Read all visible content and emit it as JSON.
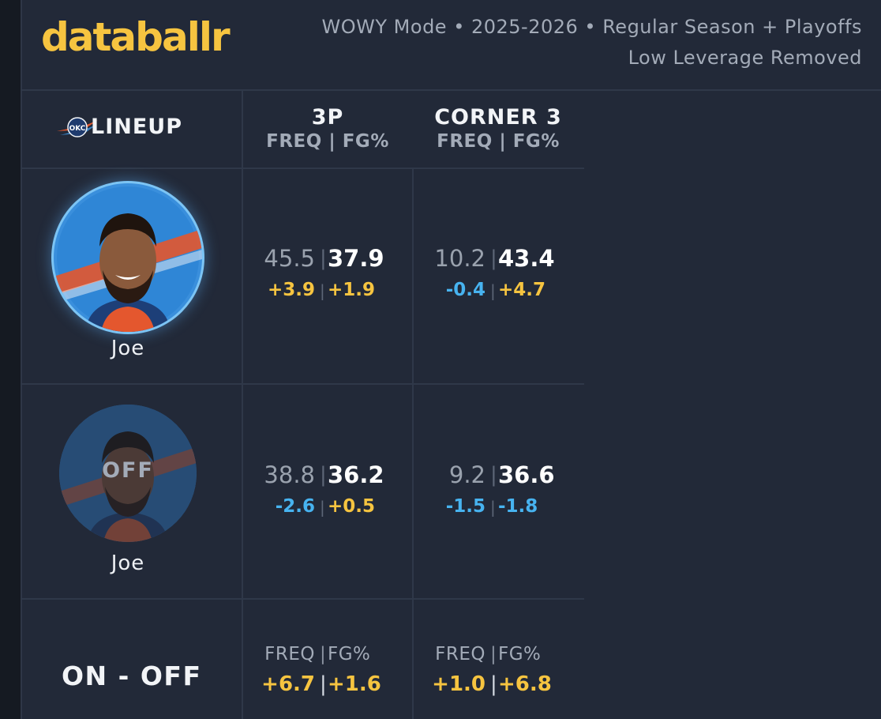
{
  "header": {
    "logo": "databallr",
    "subtitle_line1": "WOWY Mode • 2025-2026 • Regular Season + Playoffs",
    "subtitle_line2": "Low Leverage Removed"
  },
  "table": {
    "lineup_label": "LINEUP",
    "team_logo_text": "OKC",
    "columns": [
      {
        "title": "3P",
        "subtitle": "FREQ | FG%"
      },
      {
        "title": "CORNER 3",
        "subtitle": "FREQ | FG%"
      }
    ],
    "rows": [
      {
        "player_name": "Joe",
        "status": "on",
        "cells": [
          {
            "freq": "45.5",
            "fg": "37.9",
            "freq_delta": "+3.9",
            "fg_delta": "+1.9"
          },
          {
            "freq": "10.2",
            "fg": "43.4",
            "freq_delta": "-0.4",
            "fg_delta": "+4.7"
          }
        ]
      },
      {
        "player_name": "Joe",
        "status": "off",
        "overlay": "OFF",
        "cells": [
          {
            "freq": "38.8",
            "fg": "36.2",
            "freq_delta": "-2.6",
            "fg_delta": "+0.5"
          },
          {
            "freq": "9.2",
            "fg": "36.6",
            "freq_delta": "-1.5",
            "fg_delta": "-1.8"
          }
        ]
      }
    ],
    "on_off": {
      "label": "ON - OFF",
      "cells": [
        {
          "freq_label": "FREQ",
          "fg_label": "FG%",
          "freq": "+6.7",
          "fg": "+1.6"
        },
        {
          "freq_label": "FREQ",
          "fg_label": "FG%",
          "freq": "+1.0",
          "fg": "+6.8"
        }
      ]
    }
  },
  "colors": {
    "background": "#222938",
    "accent": "#f6c440",
    "negative": "#47b3f0",
    "text": "#f2f4f7",
    "muted": "#9aa2ae"
  }
}
